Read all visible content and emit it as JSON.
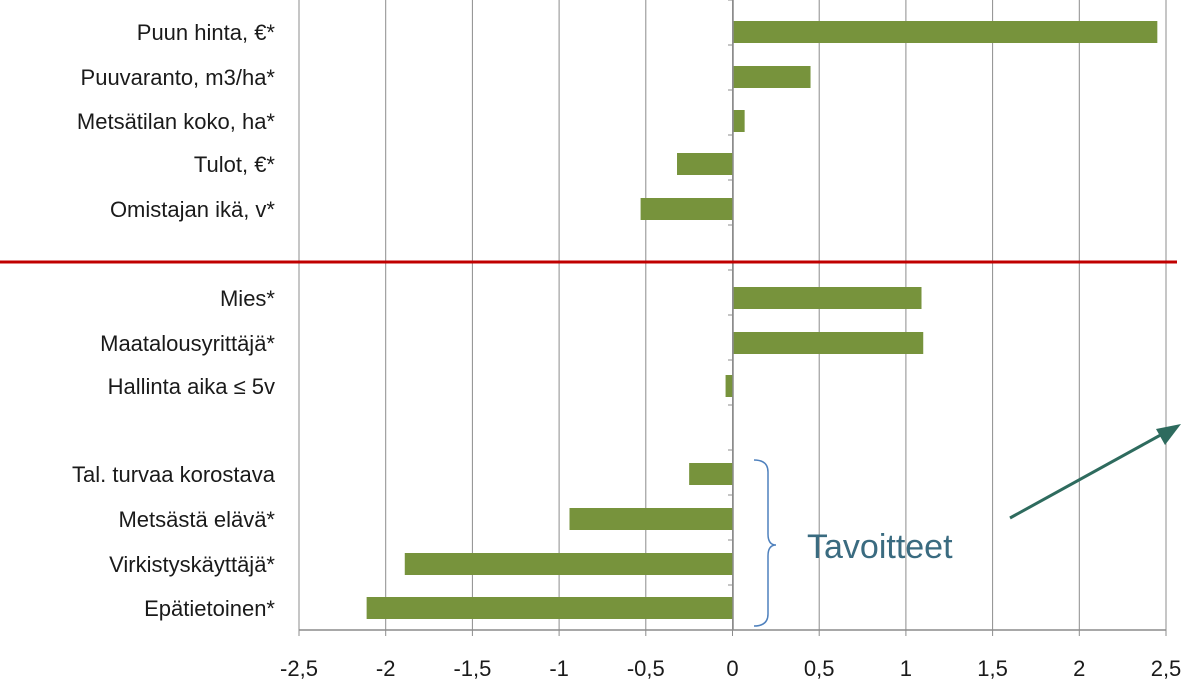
{
  "chart_data": {
    "type": "bar",
    "orientation": "horizontal",
    "categories": [
      "Puun hinta, €*",
      "Puuvaranto, m3/ha*",
      "Metsätilan koko, ha*",
      "Tulot, €*",
      "Omistajan ikä, v*",
      "Mies*",
      "Maatalousyrittäjä*",
      "Hallinta aika ≤ 5v",
      "Tal. turvaa korostava",
      "Metsästä elävä*",
      "Virkistyskäyttäjä*",
      "Epätietoinen*"
    ],
    "values": [
      2.45,
      0.45,
      0.07,
      -0.32,
      -0.53,
      1.09,
      1.1,
      -0.04,
      -0.25,
      -0.94,
      -1.89,
      -2.11
    ],
    "xlim": [
      -2.5,
      2.5
    ],
    "xticks": [
      "-2,5",
      "-2",
      "-1,5",
      "-1",
      "-0,5",
      "0",
      "0,5",
      "1",
      "1,5",
      "2",
      "2,5"
    ],
    "grid": "vertical",
    "bar_color": "#77933c",
    "divider_color": "#c00000",
    "annotation": {
      "text": "Tavoitteet",
      "bracket_color": "#4f81bd",
      "arrow_color": "#2e6b5e"
    }
  }
}
